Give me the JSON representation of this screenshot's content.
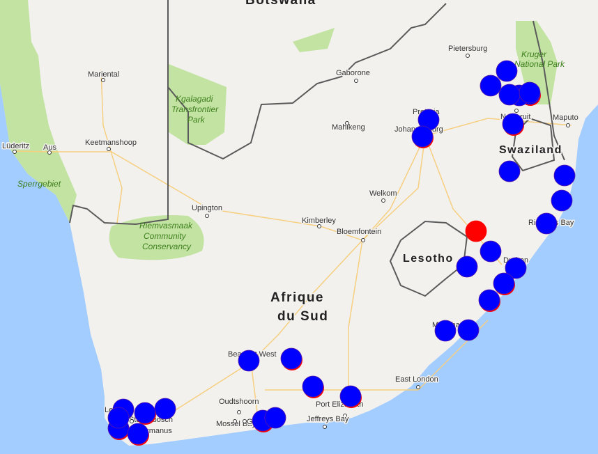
{
  "map": {
    "colors": {
      "water": "#a3ccff",
      "land": "#f2f1ed",
      "park": "#c2e3a2",
      "border": "#5a5a5a",
      "road": "#f6cf80",
      "marker": "#0000ff",
      "marker_alert": "#ff0000"
    },
    "countries": {
      "botswana": "Botswana",
      "south_africa_line1": "Afrique",
      "south_africa_line2": "du Sud",
      "lesotho": "Lesotho",
      "swaziland": "Swaziland"
    },
    "parks": {
      "kgalagadi_1": "Kgalagadi",
      "kgalagadi_2": "Transfrontier",
      "kgalagadi_3": "Park",
      "kruger_1": "Kruger",
      "kruger_2": "National Park",
      "sperrgebiet": "Sperrgebiet",
      "riemvasmaak_1": "Riemvasmaak",
      "riemvasmaak_2": "Community",
      "riemvasmaak_3": "Conservancy"
    },
    "cities": {
      "mariental": "Mariental",
      "luderitz": "Lüderitz",
      "aus": "Aus",
      "keetmanshoop": "Keetmanshoop",
      "upington": "Upington",
      "gaborone": "Gaborone",
      "mahikeng": "Mahikeng",
      "pietersburg": "Pietersburg",
      "pretoria": "Pretoria",
      "johannesburg": "Johannesburg",
      "nelspruit": "Nelspruit",
      "maputo": "Maputo",
      "welkom": "Welkom",
      "kimberley": "Kimberley",
      "bloemfontein": "Bloemfontein",
      "richards_bay": "Richards Bay",
      "durban": "Durban",
      "mthatha": "Mthatha",
      "east_london": "East London",
      "port_elizabeth": "Port Elizabeth",
      "jeffreys_bay": "Jeffreys Bay",
      "beaufort_west": "Beaufort West",
      "oudtshoorn": "Oudtshoorn",
      "mossel_bay": "Mossel Bay",
      "george": "George",
      "stellenbosch": "Stellenbosch",
      "hermanus": "Hermanus",
      "cape_town": "Le Cap"
    }
  }
}
